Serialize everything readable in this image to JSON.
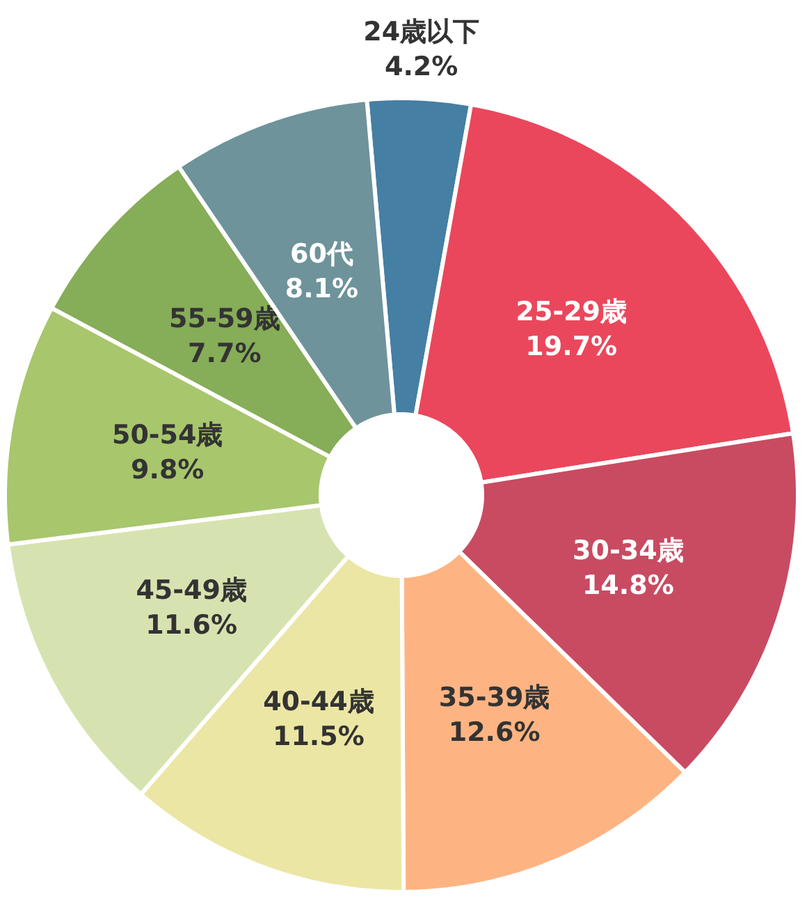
{
  "chart_data": {
    "type": "donut",
    "categories": [
      "24歳以下",
      "25-29歳",
      "30-34歳",
      "35-39歳",
      "40-44歳",
      "45-49歳",
      "50-54歳",
      "55-59歳",
      "60代"
    ],
    "values": [
      4.2,
      19.7,
      14.8,
      12.6,
      11.5,
      11.6,
      9.8,
      7.7,
      8.1
    ],
    "value_labels": [
      "4.2%",
      "19.7%",
      "14.8%",
      "12.6%",
      "11.5%",
      "11.6%",
      "9.8%",
      "7.7%",
      "8.1%"
    ],
    "colors": [
      "#457fa3",
      "#ea475c",
      "#c84b62",
      "#feb482",
      "#ebe6a4",
      "#d6e3b0",
      "#a8c66c",
      "#86ad57",
      "#6e939a"
    ]
  }
}
